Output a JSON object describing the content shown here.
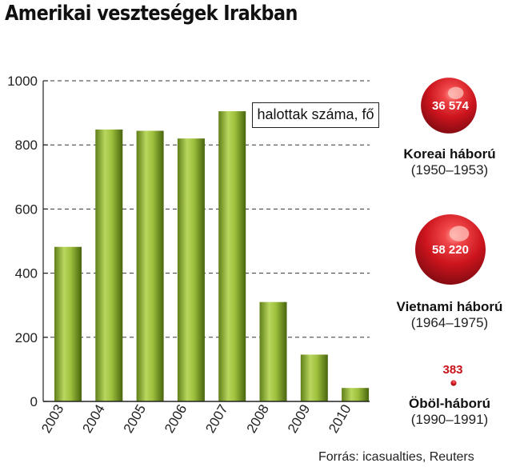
{
  "title": "Amerikai veszteségek Irakban",
  "legend_label": "halottak száma, fő",
  "source": "Forrás: icasualties, Reuters",
  "colors": {
    "bar_light": "#b7d45a",
    "bar_dark": "#4e6b12",
    "bubble": "#c8121b",
    "gridline": "#333333"
  },
  "chart_data": {
    "type": "bar",
    "title": "Amerikai veszteségek Irakban",
    "categories": [
      "2003",
      "2004",
      "2005",
      "2006",
      "2007",
      "2008",
      "2009",
      "2010"
    ],
    "values": [
      482,
      848,
      844,
      820,
      905,
      310,
      146,
      42
    ],
    "ylabel": "halottak száma, fő",
    "ylim": [
      0,
      1000
    ],
    "yticks": [
      "0",
      "200",
      "400",
      "600",
      "800",
      "1000"
    ],
    "grid": true,
    "legend": "top-right"
  },
  "comparisons": [
    {
      "value_label": "36 574",
      "value": 36574,
      "name": "Koreai háború",
      "years": "(1950–1953)"
    },
    {
      "value_label": "58 220",
      "value": 58220,
      "name": "Vietnami háború",
      "years": "(1964–1975)"
    },
    {
      "value_label": "383",
      "value": 383,
      "name": "Öböl-háború",
      "years": "(1990–1991)"
    }
  ]
}
